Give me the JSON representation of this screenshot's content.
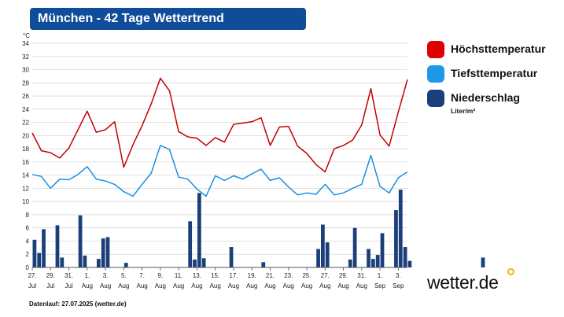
{
  "title": "München - 42 Tage Wettertrend",
  "brand": "wetter.de",
  "footnote": "Datenlauf: 27.07.2025 (wetter.de)",
  "legend": [
    {
      "label": "Höchsttemperatur",
      "color": "#e00000"
    },
    {
      "label": "Tiefsttemperatur",
      "color": "#1a9ae8"
    },
    {
      "label": "Niederschlag",
      "color": "#1b3f7a",
      "unit": "Liter/m²"
    }
  ],
  "colors": {
    "title_bg": "#0f4c9a",
    "max_line": "#c00000",
    "min_line": "#1a8fe0",
    "bars": "#1b3f7a",
    "brand_dot": "#f0b400"
  },
  "chart_data": {
    "type": "line",
    "ylabel": "°C",
    "ylim": [
      0,
      34
    ],
    "yticks": [
      0,
      2,
      4,
      6,
      8,
      10,
      12,
      14,
      16,
      18,
      20,
      22,
      24,
      26,
      28,
      30,
      32,
      34
    ],
    "grid": true,
    "x_ticks": [
      {
        "day": "27.",
        "month": "Jul"
      },
      {
        "day": "29.",
        "month": "Jul"
      },
      {
        "day": "31.",
        "month": "Jul"
      },
      {
        "day": "1.",
        "month": "Aug"
      },
      {
        "day": "3.",
        "month": "Aug"
      },
      {
        "day": "5.",
        "month": "Aug"
      },
      {
        "day": "7.",
        "month": "Aug"
      },
      {
        "day": "9.",
        "month": "Aug"
      },
      {
        "day": "11.",
        "month": "Aug"
      },
      {
        "day": "13.",
        "month": "Aug"
      },
      {
        "day": "15.",
        "month": "Aug"
      },
      {
        "day": "17.",
        "month": "Aug"
      },
      {
        "day": "19.",
        "month": "Aug"
      },
      {
        "day": "21.",
        "month": "Aug"
      },
      {
        "day": "23.",
        "month": "Aug"
      },
      {
        "day": "25.",
        "month": "Aug"
      },
      {
        "day": "27.",
        "month": "Aug"
      },
      {
        "day": "29.",
        "month": "Aug"
      },
      {
        "day": "31.",
        "month": "Aug"
      },
      {
        "day": "1.",
        "month": "Sep"
      },
      {
        "day": "3.",
        "month": "Sep"
      }
    ],
    "series": [
      {
        "name": "Höchsttemperatur",
        "values": [
          20.4,
          17.7,
          17.4,
          16.6,
          18.1,
          20.9,
          23.7,
          20.5,
          20.9,
          22.1,
          15.2,
          18.6,
          21.5,
          24.8,
          28.7,
          26.8,
          20.6,
          19.8,
          19.6,
          18.5,
          19.7,
          19.0,
          21.7,
          21.9,
          22.1,
          22.7,
          18.5,
          21.3,
          21.4,
          18.4,
          17.3,
          15.6,
          14.5,
          18.0,
          18.5,
          19.3,
          21.6,
          27.1,
          20.1,
          18.4,
          23.6,
          28.5
        ]
      },
      {
        "name": "Tiefsttemperatur",
        "values": [
          14.1,
          13.8,
          12.0,
          13.4,
          13.3,
          14.1,
          15.3,
          13.4,
          13.1,
          12.6,
          11.5,
          10.8,
          12.6,
          14.3,
          18.5,
          17.9,
          13.7,
          13.4,
          11.9,
          10.8,
          13.9,
          13.2,
          13.9,
          13.4,
          14.2,
          14.9,
          13.2,
          13.6,
          12.2,
          11.0,
          11.3,
          11.1,
          12.6,
          11.0,
          11.3,
          12.0,
          12.6,
          17.0,
          12.3,
          11.3,
          13.6,
          14.5
        ]
      }
    ],
    "precipitation": {
      "name": "Niederschlag",
      "unit": "Liter/m²",
      "values": [
        4.2,
        2.2,
        5.8,
        0,
        0,
        6.4,
        1.5,
        0,
        0,
        0,
        7.9,
        1.8,
        0,
        0,
        1.3,
        4.4,
        4.6,
        0,
        0,
        0,
        0.7,
        0,
        0,
        0,
        0,
        0,
        0,
        0,
        0,
        0,
        0,
        0,
        0,
        0,
        7.0,
        1.2,
        11.3,
        1.4,
        0,
        0,
        0,
        0,
        0,
        3.1,
        0,
        0,
        0,
        0,
        0,
        0,
        0.8,
        0,
        0,
        0,
        0,
        0,
        0,
        0,
        0,
        0,
        0,
        0,
        2.8,
        6.5,
        3.8,
        0,
        0,
        0,
        0,
        1.2,
        6.0,
        0,
        0,
        2.8,
        1.3,
        1.9,
        5.2,
        0,
        0,
        8.7,
        11.8,
        3.1,
        1.0,
        0,
        0,
        0,
        0,
        0,
        0,
        0,
        0,
        0,
        0,
        0,
        0,
        0,
        0,
        0,
        1.5,
        0,
        0,
        0,
        0,
        0,
        0,
        0,
        0,
        0
      ]
    }
  }
}
